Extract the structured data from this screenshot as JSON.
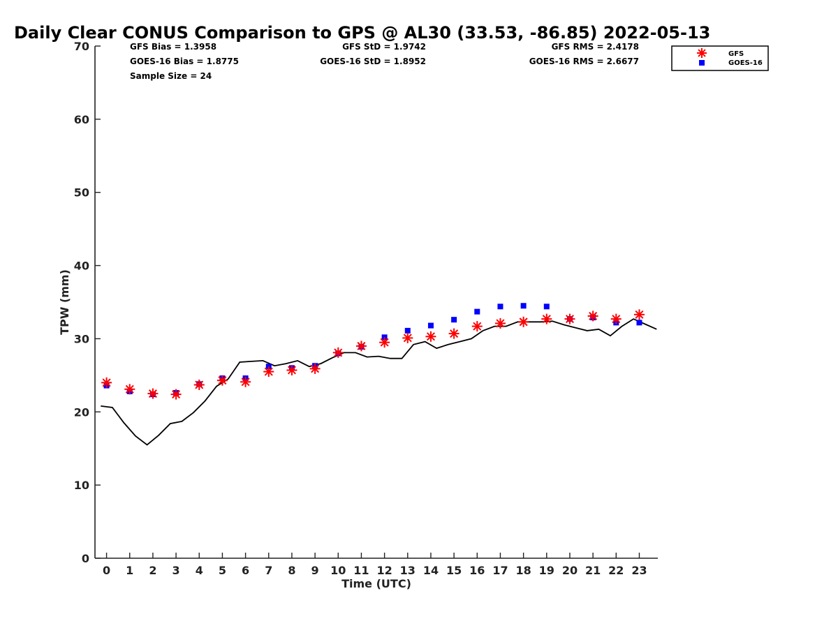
{
  "chart_data": {
    "type": "line",
    "title": "Daily Clear CONUS Comparison to GPS @ AL30 (33.53, -86.85) 2022-05-13",
    "xlabel": "Time (UTC)",
    "ylabel": "TPW (mm)",
    "xlim": [
      -0.5,
      23.8
    ],
    "ylim": [
      0,
      70
    ],
    "yticks": [
      0,
      10,
      20,
      30,
      40,
      50,
      60,
      70
    ],
    "xticks": [
      0,
      1,
      2,
      3,
      4,
      5,
      6,
      7,
      8,
      9,
      10,
      11,
      12,
      13,
      14,
      15,
      16,
      17,
      18,
      19,
      20,
      21,
      22,
      23
    ],
    "grid": false,
    "legend_position": "top-right",
    "stats": {
      "gfs_bias": "GFS Bias = 1.3958",
      "goes_bias": "GOES-16 Bias = 1.8775",
      "sample_size": "Sample Size = 24",
      "gfs_std": "GFS StD = 1.9742",
      "goes_std": "GOES-16 StD = 1.8952",
      "gfs_rms": "GFS RMS = 2.4178",
      "goes_rms": "GOES-16 RMS = 2.6677"
    },
    "series": [
      {
        "name": "GFS",
        "marker": "asterisk",
        "color": "#ff0000",
        "x": [
          0,
          1,
          2,
          3,
          4,
          5,
          6,
          7,
          8,
          9,
          10,
          11,
          12,
          13,
          14,
          15,
          16,
          17,
          18,
          19,
          20,
          21,
          22,
          23
        ],
        "values": [
          24.0,
          23.1,
          22.5,
          22.4,
          23.7,
          24.3,
          24.1,
          25.5,
          25.7,
          25.9,
          28.1,
          29.0,
          29.5,
          30.1,
          30.3,
          30.7,
          31.7,
          32.1,
          32.3,
          32.7,
          32.7,
          33.1,
          32.7,
          33.3
        ]
      },
      {
        "name": "GOES-16",
        "marker": "square",
        "color": "#0000ff",
        "x": [
          0,
          1,
          2,
          3,
          4,
          5,
          6,
          7,
          8,
          9,
          10,
          11,
          12,
          13,
          14,
          15,
          16,
          17,
          18,
          19,
          20,
          21,
          22,
          23
        ],
        "values": [
          23.6,
          22.8,
          22.4,
          22.6,
          23.8,
          24.6,
          24.6,
          26.2,
          26.0,
          26.3,
          28.0,
          28.9,
          30.2,
          31.1,
          31.8,
          32.6,
          33.7,
          34.4,
          34.5,
          34.4,
          32.7,
          32.9,
          32.2,
          32.2
        ]
      },
      {
        "name": "",
        "style": "line",
        "color": "#000000",
        "x": [
          -0.25,
          0.25,
          0.75,
          1.25,
          1.75,
          2.25,
          2.75,
          3.25,
          3.75,
          4.25,
          4.75,
          5.25,
          5.75,
          6.25,
          6.75,
          7.25,
          7.75,
          8.25,
          8.75,
          9.25,
          9.75,
          10.25,
          10.75,
          11.25,
          11.75,
          12.25,
          12.75,
          13.25,
          13.75,
          14.25,
          14.75,
          15.25,
          15.75,
          16.25,
          16.75,
          17.25,
          17.75,
          18.25,
          18.75,
          19.25,
          19.75,
          20.25,
          20.75,
          21.25,
          21.75,
          22.25,
          22.75,
          23.25,
          23.75
        ],
        "values": [
          20.8,
          20.6,
          18.5,
          16.7,
          15.5,
          16.8,
          18.4,
          18.7,
          19.9,
          21.5,
          23.5,
          24.5,
          26.8,
          26.9,
          27.0,
          26.3,
          26.6,
          27.0,
          26.2,
          26.6,
          27.4,
          28.1,
          28.1,
          27.5,
          27.6,
          27.3,
          27.3,
          29.2,
          29.6,
          28.7,
          29.2,
          29.6,
          30.0,
          31.1,
          31.7,
          31.7,
          32.3,
          32.3,
          32.3,
          32.4,
          31.9,
          31.5,
          31.1,
          31.3,
          30.4,
          31.7,
          32.7,
          32.0,
          31.3
        ]
      }
    ]
  }
}
